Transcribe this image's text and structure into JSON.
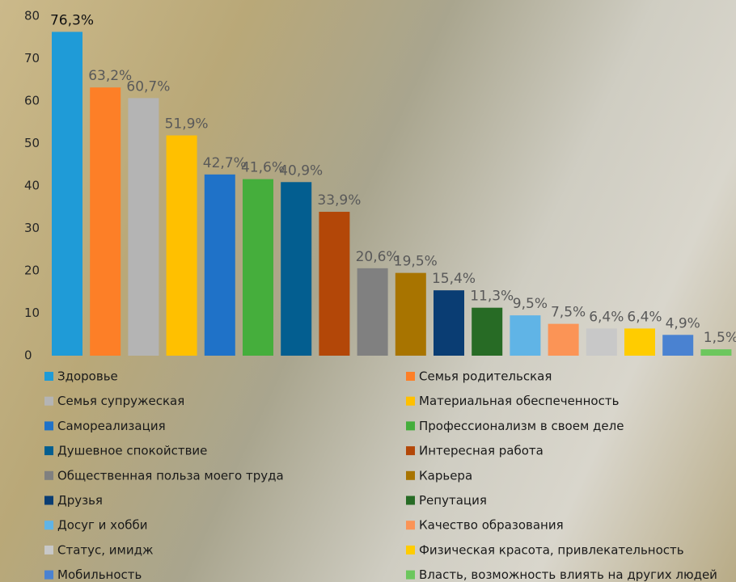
{
  "chart_data": {
    "type": "bar",
    "categories": [
      "Здоровье",
      "Семья родительская",
      "Семья супружеская",
      "Материальная обеспеченность",
      "Самореализация",
      "Профессионализм в своем деле",
      "Душевное спокойствие",
      "Интересная работа",
      "Общественная польза моего труда",
      "Карьера",
      "Друзья",
      "Репутация",
      "Досуг и хобби",
      "Качество образования",
      "Статус, имидж",
      "Физическая красота, привлекательность",
      "Мобильность",
      "Власть, возможность влиять на других людей"
    ],
    "values": [
      76.3,
      63.2,
      60.7,
      51.9,
      42.7,
      41.6,
      40.9,
      33.9,
      20.6,
      19.5,
      15.4,
      11.3,
      9.5,
      7.5,
      6.4,
      6.4,
      4.9,
      1.5
    ],
    "value_labels": [
      "76,3%",
      "63,2%",
      "60,7%",
      "51,9%",
      "42,7%",
      "41,6%",
      "40,9%",
      "33,9%",
      "20,6%",
      "19,5%",
      "15,4%",
      "11,3%",
      "9,5%",
      "7,5%",
      "6,4%",
      "6,4%",
      "4,9%",
      "1,5%"
    ],
    "colors": [
      "#1f9bd7",
      "#fd7f27",
      "#b4b4b4",
      "#ffc000",
      "#1f72c8",
      "#45ae3c",
      "#035e90",
      "#b34708",
      "#808080",
      "#a87400",
      "#0a3d73",
      "#276b25",
      "#60b4e6",
      "#fb9456",
      "#c8c8c8",
      "#ffcc00",
      "#4a82d1",
      "#6cc75d"
    ],
    "ylim": [
      0,
      80
    ],
    "yticks": [
      0,
      10,
      20,
      30,
      40,
      50,
      60,
      70,
      80
    ],
    "grid": false,
    "legend": "bottom"
  }
}
